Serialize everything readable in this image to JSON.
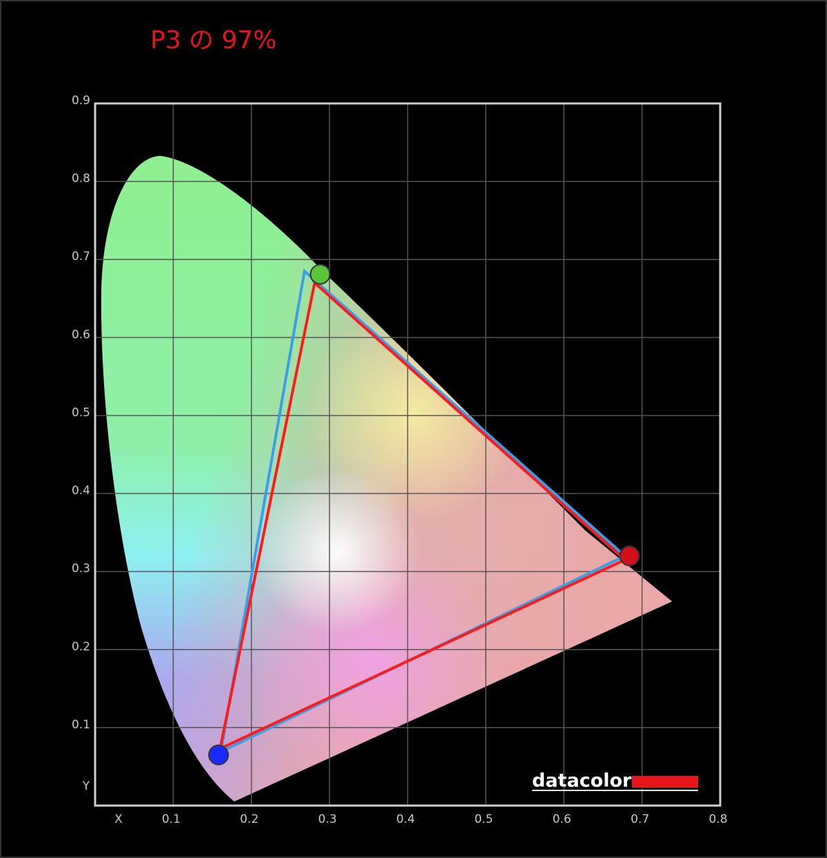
{
  "chart_data": {
    "type": "chromaticity",
    "title": "P3 の 97%",
    "x_label": "X",
    "y_label": "Y",
    "xlim": [
      0,
      0.8
    ],
    "ylim": [
      0,
      0.9
    ],
    "xticks": [
      0.1,
      0.2,
      0.3,
      0.4,
      0.5,
      0.6,
      0.7,
      0.8
    ],
    "yticks": [
      0.1,
      0.2,
      0.3,
      0.4,
      0.5,
      0.6,
      0.7,
      0.8,
      0.9
    ],
    "grid": true,
    "series": [
      {
        "color": "#3a9ee8",
        "x": [
          0.268,
          0.678,
          0.161
        ],
        "y": [
          0.685,
          0.32,
          0.069
        ]
      },
      {
        "color": "#ff1a1a",
        "x": [
          0.281,
          0.678,
          0.16
        ],
        "y": [
          0.67,
          0.315,
          0.073
        ]
      }
    ],
    "points": {
      "x": [
        0.288,
        0.684,
        0.158
      ],
      "y": [
        0.681,
        0.32,
        0.065
      ],
      "colors": [
        "#5cc43a",
        "#d0101a",
        "#1a2aff"
      ]
    },
    "logo": "datacolor"
  }
}
